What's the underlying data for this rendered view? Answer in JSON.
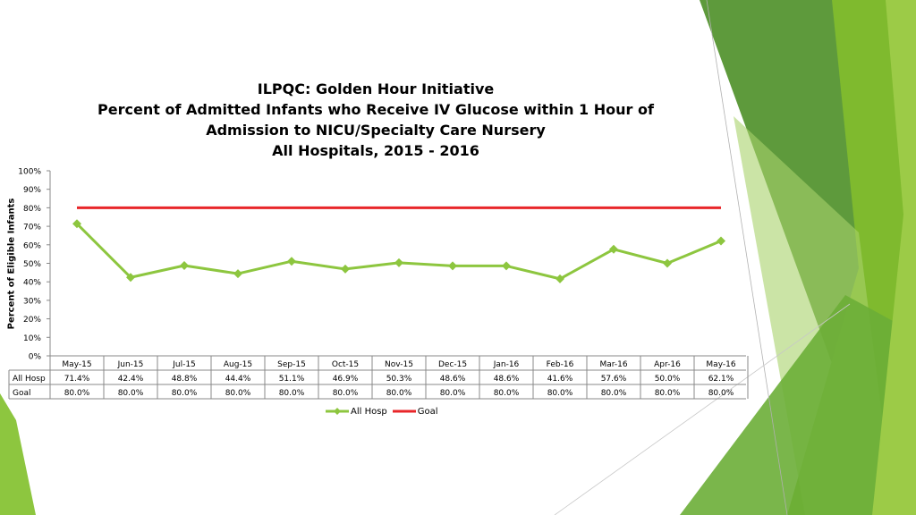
{
  "chart_data": {
    "type": "line",
    "title_lines": [
      "ILPQC: Golden Hour Initiative",
      "Percent of Admitted Infants who Receive IV Glucose within 1 Hour of",
      "Admission to NICU/Specialty Care Nursery",
      "All Hospitals, 2015 - 2016"
    ],
    "ylabel": "Percent of Eligible Infants",
    "ylim": [
      0,
      100
    ],
    "y_ticks": [
      "0%",
      "10%",
      "20%",
      "30%",
      "40%",
      "50%",
      "60%",
      "70%",
      "80%",
      "90%",
      "100%"
    ],
    "categories": [
      "May-15",
      "Jun-15",
      "Jul-15",
      "Aug-15",
      "Sep-15",
      "Oct-15",
      "Nov-15",
      "Dec-15",
      "Jan-16",
      "Feb-16",
      "Mar-16",
      "Apr-16",
      "May-16"
    ],
    "series": [
      {
        "name": "All Hosp",
        "color": "#8dc63f",
        "marker": "diamond",
        "values": [
          71.4,
          42.4,
          48.8,
          44.4,
          51.1,
          46.9,
          50.3,
          48.6,
          48.6,
          41.6,
          57.6,
          50.0,
          62.1
        ],
        "labels": [
          "71.4%",
          "42.4%",
          "48.8%",
          "44.4%",
          "51.1%",
          "46.9%",
          "50.3%",
          "48.6%",
          "48.6%",
          "41.6%",
          "57.6%",
          "50.0%",
          "62.1%"
        ]
      },
      {
        "name": "Goal",
        "color": "#e8262a",
        "marker": "none",
        "values": [
          80,
          80,
          80,
          80,
          80,
          80,
          80,
          80,
          80,
          80,
          80,
          80,
          80
        ],
        "labels": [
          "80.0%",
          "80.0%",
          "80.0%",
          "80.0%",
          "80.0%",
          "80.0%",
          "80.0%",
          "80.0%",
          "80.0%",
          "80.0%",
          "80.0%",
          "80.0%",
          "80.0%"
        ]
      }
    ],
    "data_table": true,
    "legend_position": "bottom",
    "grid": false
  }
}
